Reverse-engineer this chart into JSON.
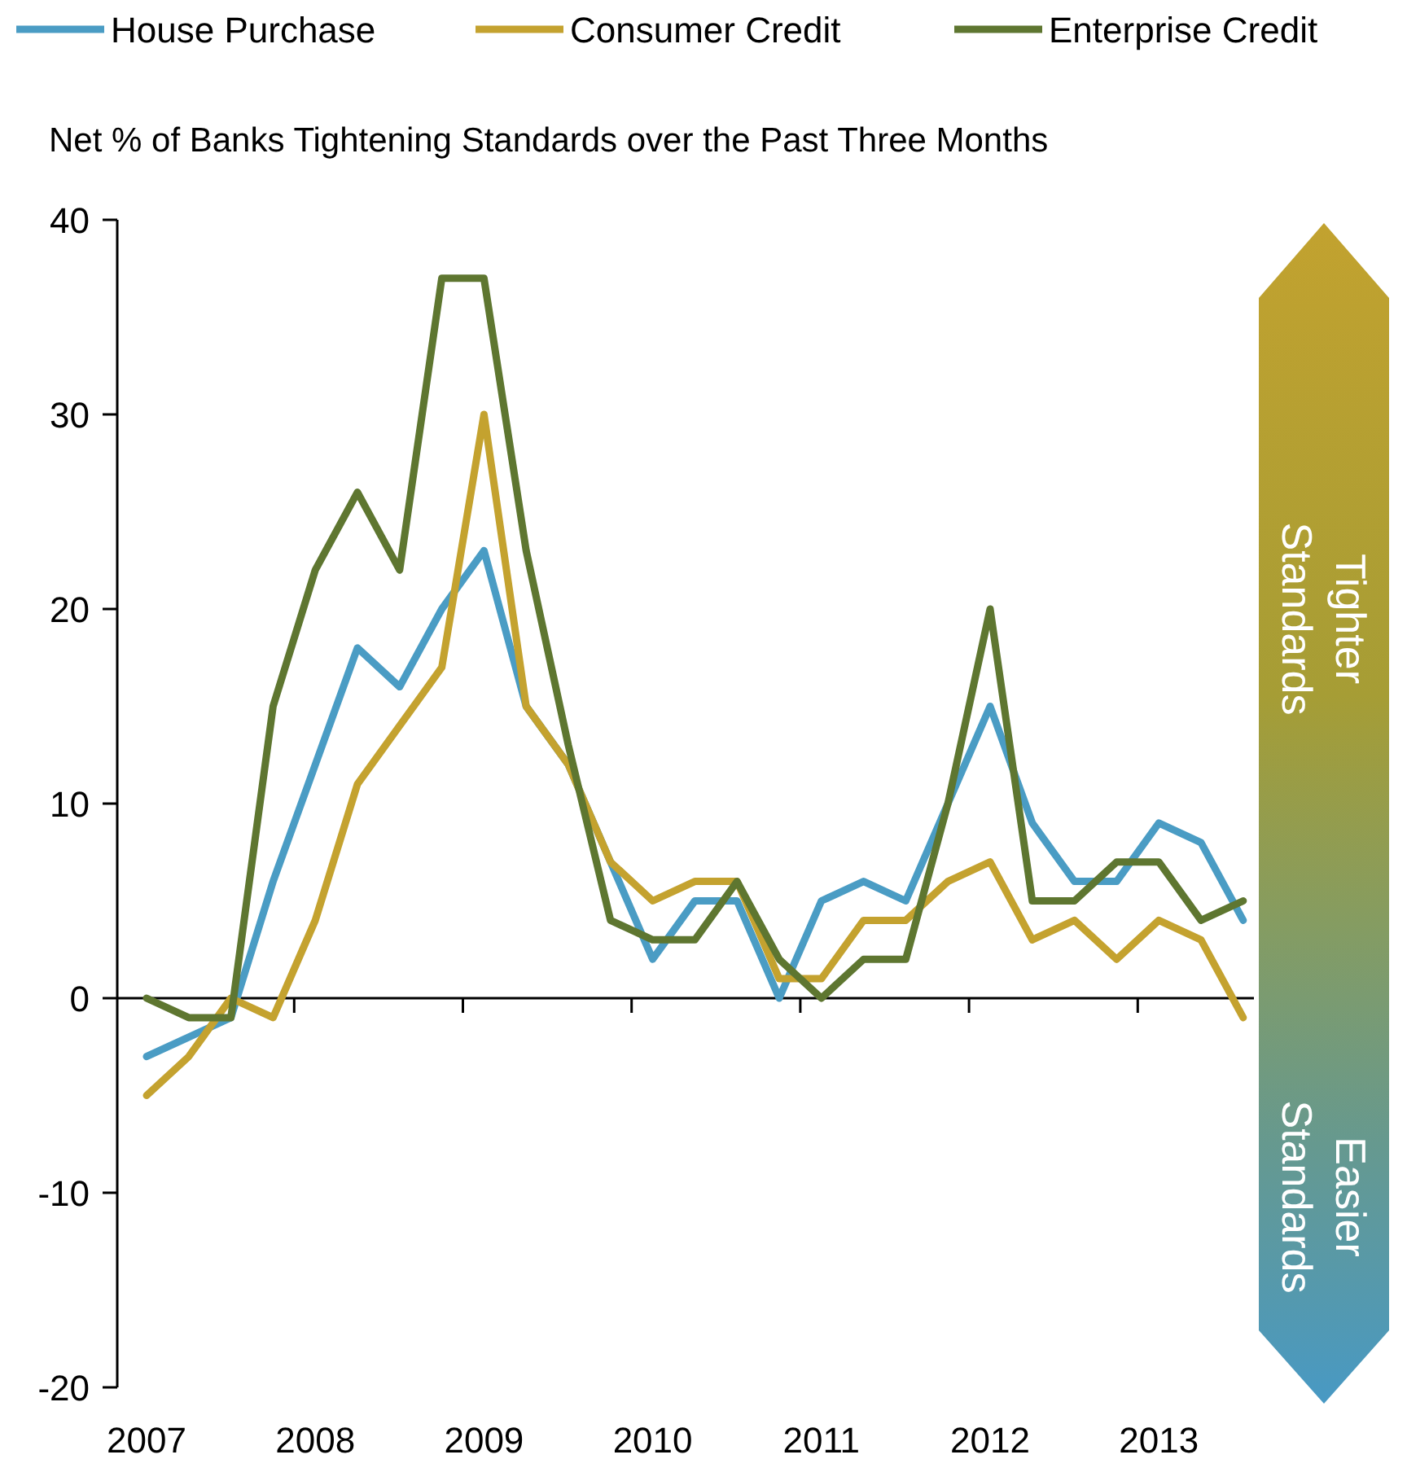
{
  "chart_data": {
    "type": "line",
    "title": "Net % of Banks Tightening Standards over the Past Three Months",
    "categories": [
      "2007",
      null,
      null,
      null,
      "2008",
      null,
      null,
      null,
      "2009",
      null,
      null,
      null,
      "2010",
      null,
      null,
      null,
      "2011",
      null,
      null,
      null,
      "2012",
      null,
      null,
      null,
      "2013",
      null,
      null
    ],
    "series": [
      {
        "name": "House Purchase",
        "color": "#4a9cc4",
        "values": [
          -3,
          -2,
          -1,
          6,
          12,
          18,
          16,
          20,
          23,
          15,
          12,
          7,
          2,
          5,
          5,
          0,
          5,
          6,
          5,
          10,
          15,
          9,
          6,
          6,
          9,
          8,
          4
        ]
      },
      {
        "name": "Consumer Credit",
        "color": "#c4a22f",
        "values": [
          -5,
          -3,
          0,
          -1,
          4,
          11,
          14,
          17,
          30,
          15,
          12,
          7,
          5,
          6,
          6,
          1,
          1,
          4,
          4,
          6,
          7,
          3,
          4,
          2,
          4,
          3,
          -1
        ]
      },
      {
        "name": "Enterprise Credit",
        "color": "#5e7630",
        "values": [
          0,
          -1,
          -1,
          15,
          22,
          26,
          22,
          37,
          37,
          23,
          13,
          4,
          3,
          3,
          6,
          2,
          0,
          2,
          2,
          10,
          20,
          5,
          5,
          7,
          7,
          4,
          5
        ]
      }
    ],
    "ylim": [
      -20,
      40
    ],
    "yticks": [
      -20,
      -10,
      0,
      10,
      20,
      30,
      40
    ],
    "legend": "top",
    "line_style": "solid",
    "marker": "none",
    "annotations": [
      "Tighter Standards",
      "Easier Standards"
    ]
  }
}
